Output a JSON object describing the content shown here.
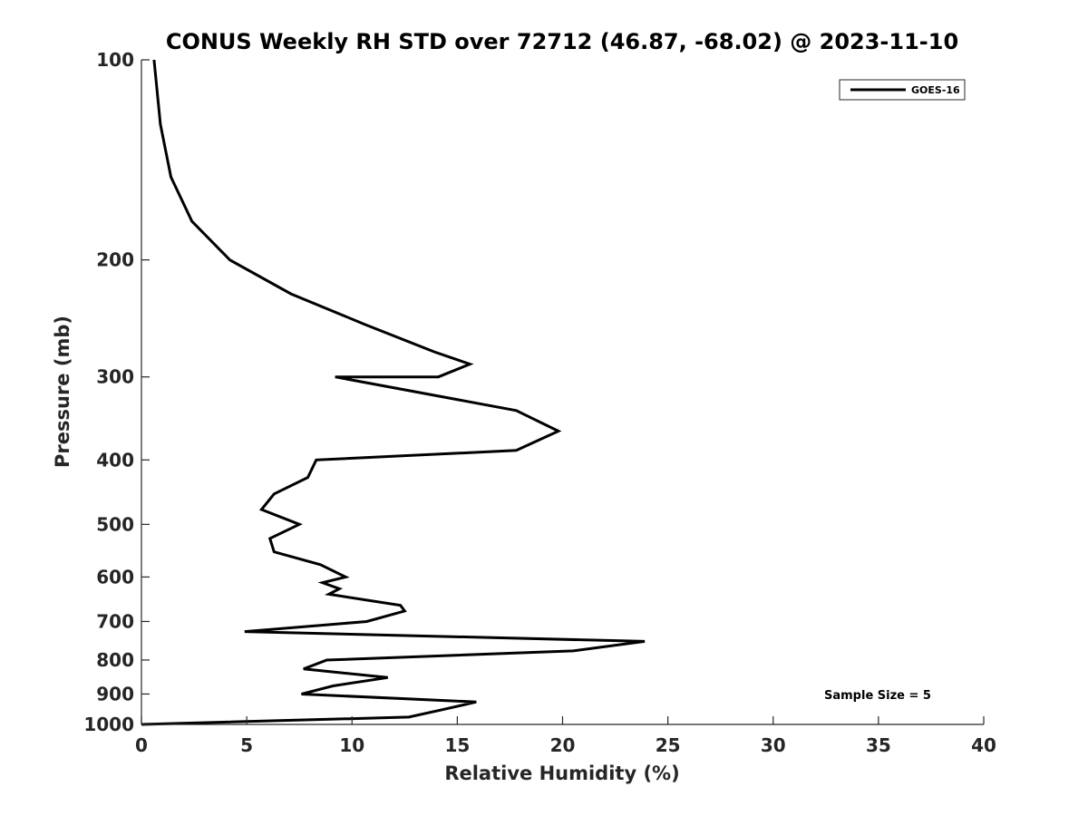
{
  "chart_data": {
    "type": "line",
    "title": "CONUS Weekly RH STD over 72712 (46.87, -68.02) @ 2023-11-10",
    "xlabel": "Relative Humidity (%)",
    "ylabel": "Pressure (mb)",
    "xlim": [
      0,
      40
    ],
    "ylim": [
      100,
      1000
    ],
    "y_scale": "log",
    "y_reversed": true,
    "grid": false,
    "x_ticks": [
      0,
      5,
      10,
      15,
      20,
      25,
      30,
      35,
      40
    ],
    "x_tick_labels": [
      "0",
      "5",
      "10",
      "15",
      "20",
      "25",
      "30",
      "35",
      "40"
    ],
    "y_ticks": [
      100,
      200,
      300,
      400,
      500,
      600,
      700,
      800,
      900,
      1000
    ],
    "y_tick_labels": [
      "100",
      "200",
      "300",
      "400",
      "500",
      "600",
      "700",
      "800",
      "900",
      "1000"
    ],
    "legend": {
      "position": "top-right"
    },
    "annotation": "Sample Size = 5",
    "series": [
      {
        "name": "GOES-16",
        "color": "#000000",
        "x": [
          0.6,
          0.9,
          1.4,
          2.4,
          4.2,
          7.1,
          10.6,
          13.9,
          15.6,
          14.1,
          9.2,
          17.8,
          19.8,
          17.8,
          8.3,
          7.9,
          6.3,
          5.7,
          7.5,
          6.1,
          6.3,
          8.5,
          9.7,
          8.6,
          9.4,
          8.9,
          12.3,
          12.5,
          10.7,
          4.9,
          23.9,
          20.5,
          8.8,
          7.7,
          11.7,
          9.1,
          7.6,
          15.9,
          14.3,
          12.7,
          0.0
        ],
        "y": [
          100,
          125,
          150,
          175,
          200,
          225,
          250,
          275,
          287,
          300,
          300,
          337,
          362,
          387,
          400,
          425,
          450,
          475,
          500,
          525,
          550,
          575,
          600,
          612,
          625,
          637,
          662,
          675,
          700,
          725,
          750,
          775,
          800,
          825,
          850,
          875,
          900,
          925,
          950,
          975,
          1000
        ]
      }
    ]
  }
}
